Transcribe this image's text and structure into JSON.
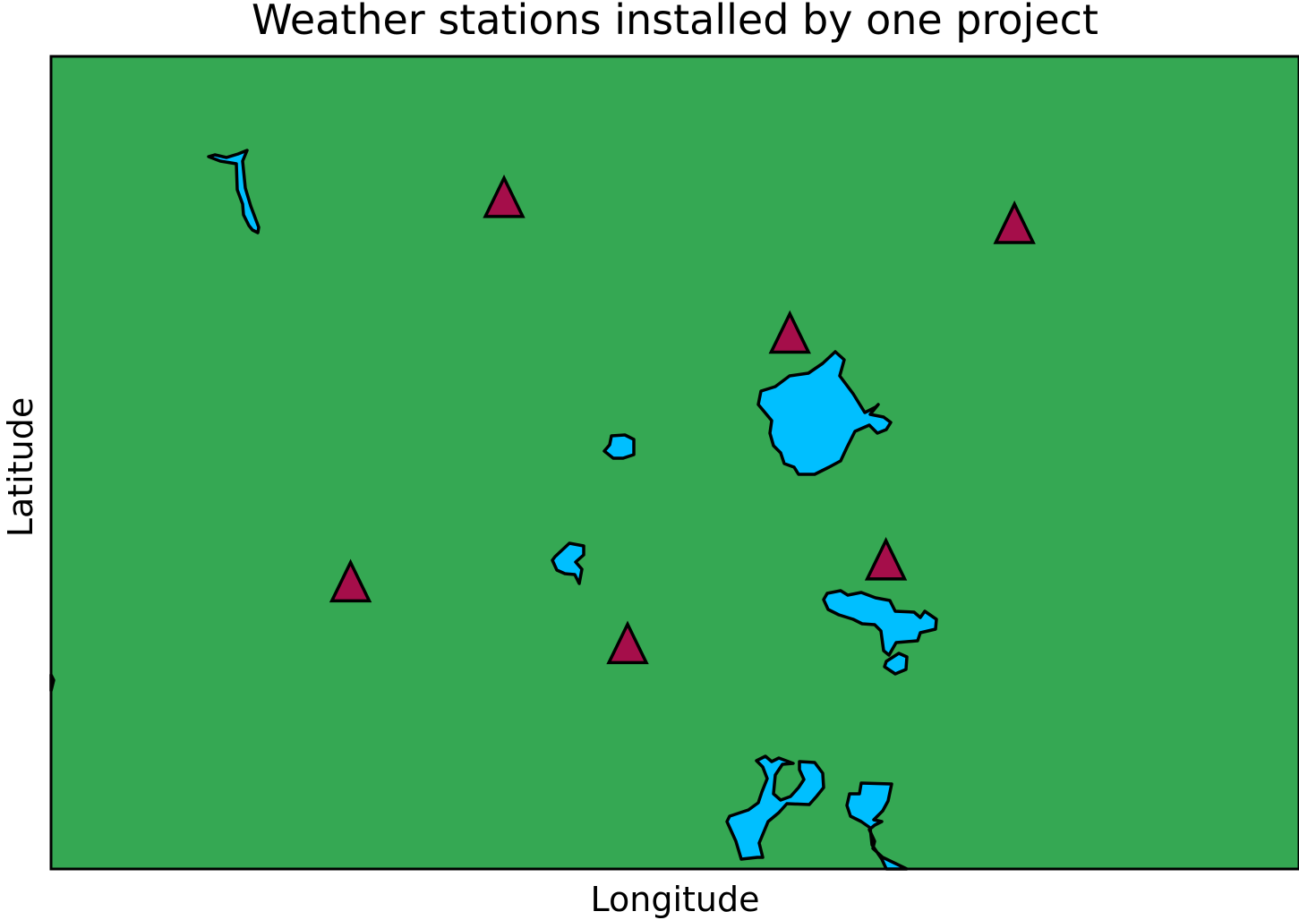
{
  "chart_data": {
    "type": "scatter",
    "title": "Weather stations installed by one project",
    "xlabel": "Longitude",
    "ylabel": "Latitude",
    "xlim": [
      0,
      100
    ],
    "ylim": [
      0,
      100
    ],
    "grid": false,
    "ticks_visible": false,
    "land_color": "#35a853",
    "water_color": "#00bfff",
    "series": [
      {
        "marker": "triangle-up",
        "color": "#a50e4a",
        "x": [
          36.3,
          77.2,
          59.2,
          24.0,
          66.9,
          46.2
        ],
        "y": [
          82.6,
          79.4,
          65.9,
          35.3,
          38.0,
          27.7
        ]
      }
    ]
  }
}
